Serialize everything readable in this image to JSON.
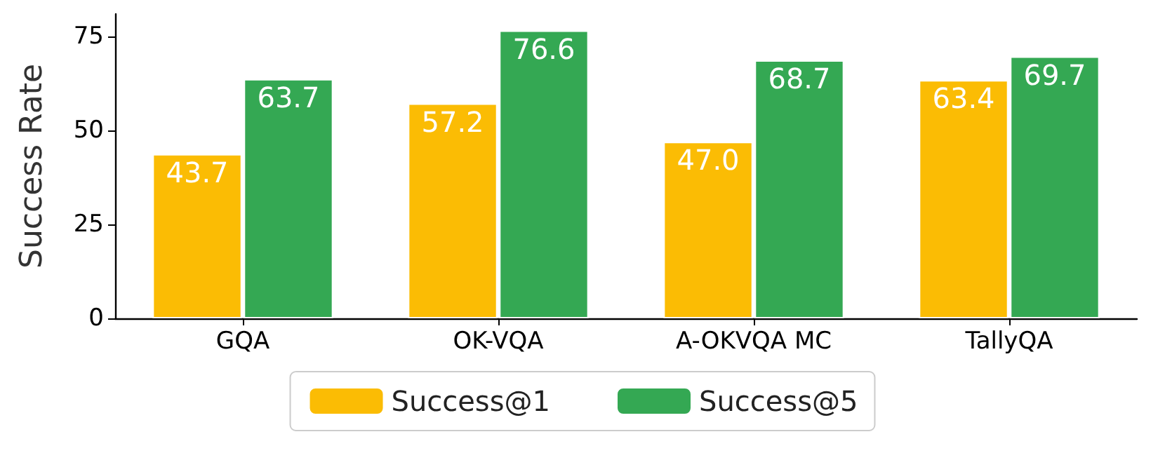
{
  "chart_data": {
    "type": "bar",
    "ylabel": "Success Rate",
    "categories": [
      "GQA",
      "OK-VQA",
      "A-OKVQA MC",
      "TallyQA"
    ],
    "series": [
      {
        "name": "Success@1",
        "color": "#fbbc04",
        "values": [
          43.7,
          57.2,
          47.0,
          63.4
        ],
        "value_labels": [
          "43.7",
          "57.2",
          "47.0",
          "63.4"
        ]
      },
      {
        "name": "Success@5",
        "color": "#34a853",
        "values": [
          63.7,
          76.6,
          68.7,
          69.7
        ],
        "value_labels": [
          "63.7",
          "76.6",
          "68.7",
          "69.7"
        ]
      }
    ],
    "ylim": [
      0,
      81
    ],
    "yticks": [
      0,
      25,
      50,
      75
    ],
    "grid": false,
    "legend": "bottom"
  }
}
